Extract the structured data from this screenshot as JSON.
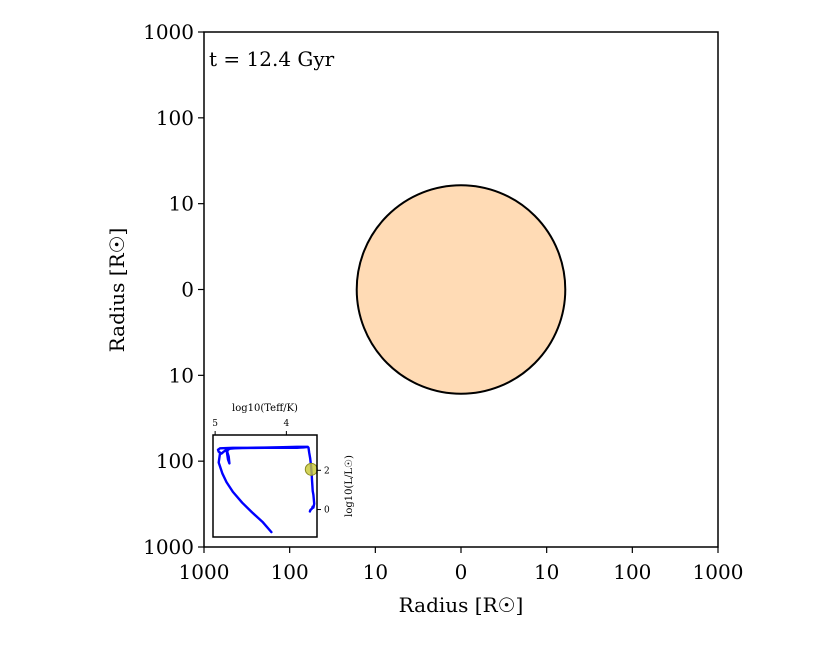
{
  "chart_data": [
    {
      "type": "scatter",
      "title": "",
      "annotation": "t = 12.4 Gyr",
      "xlabel": "Radius [R☉]",
      "ylabel": "Radius [R☉]",
      "x_ticks": [
        "1000",
        "100",
        "10",
        "0",
        "10",
        "100",
        "1000"
      ],
      "y_ticks": [
        "1000",
        "100",
        "10",
        "0",
        "10",
        "100",
        "1000"
      ],
      "x_scale": "symlog",
      "y_scale": "symlog",
      "xlim": [
        -1000,
        1000
      ],
      "ylim": [
        -1000,
        1000
      ],
      "grid": false,
      "star": {
        "x": 0,
        "y": 0,
        "radius": 15.5,
        "fill": "#ffdbb5",
        "edge": "#000000"
      }
    },
    {
      "type": "line",
      "title": "",
      "xlabel": "log10(Teff/K)",
      "ylabel": "log10(L/L☉)",
      "x_ticks": [
        "5",
        "4"
      ],
      "y_ticks": [
        "2",
        "0"
      ],
      "xlim": [
        5.03,
        3.57
      ],
      "ylim": [
        -1.4,
        3.8
      ],
      "line_color": "#0000ff",
      "marker_color": "#c8c832",
      "current_point": {
        "x": 3.65,
        "y": 2.05
      },
      "series": [
        {
          "x": [
            3.7,
            3.85,
            4.05,
            4.3,
            4.55,
            4.75,
            4.93,
            4.96,
            4.95,
            4.91,
            4.88,
            4.84,
            4.82,
            4.8,
            4.81,
            4.83,
            4.82,
            4.79,
            4.73,
            4.62,
            4.5,
            4.3,
            4.1,
            3.95,
            3.85,
            3.8,
            3.76,
            3.73,
            3.71,
            3.7,
            3.69,
            3.68,
            3.665,
            3.655,
            3.65,
            3.645,
            3.64,
            3.635,
            3.63,
            3.62,
            3.61,
            3.62,
            3.63,
            3.64,
            3.655,
            3.665,
            3.67
          ],
          "y": [
            3.2,
            3.2,
            3.18,
            3.16,
            3.15,
            3.15,
            3.12,
            3.05,
            2.95,
            2.85,
            2.95,
            3.05,
            2.55,
            2.35,
            2.7,
            2.95,
            3.05,
            3.1,
            3.12,
            3.13,
            3.14,
            3.15,
            3.15,
            3.15,
            3.15,
            3.16,
            3.17,
            3.18,
            3.19,
            3.2,
            3.15,
            2.9,
            2.6,
            2.3,
            2.05,
            1.8,
            1.5,
            1.2,
            0.95,
            0.75,
            0.3,
            0.1,
            0.15,
            0.05,
            0.0,
            -0.05,
            -0.1
          ]
        },
        {
          "x": [
            4.93,
            4.95,
            4.9,
            4.84,
            4.75,
            4.62,
            4.48,
            4.33,
            4.21
          ],
          "y": [
            2.9,
            2.4,
            1.85,
            1.4,
            0.9,
            0.35,
            -0.15,
            -0.65,
            -1.15
          ]
        }
      ]
    }
  ]
}
